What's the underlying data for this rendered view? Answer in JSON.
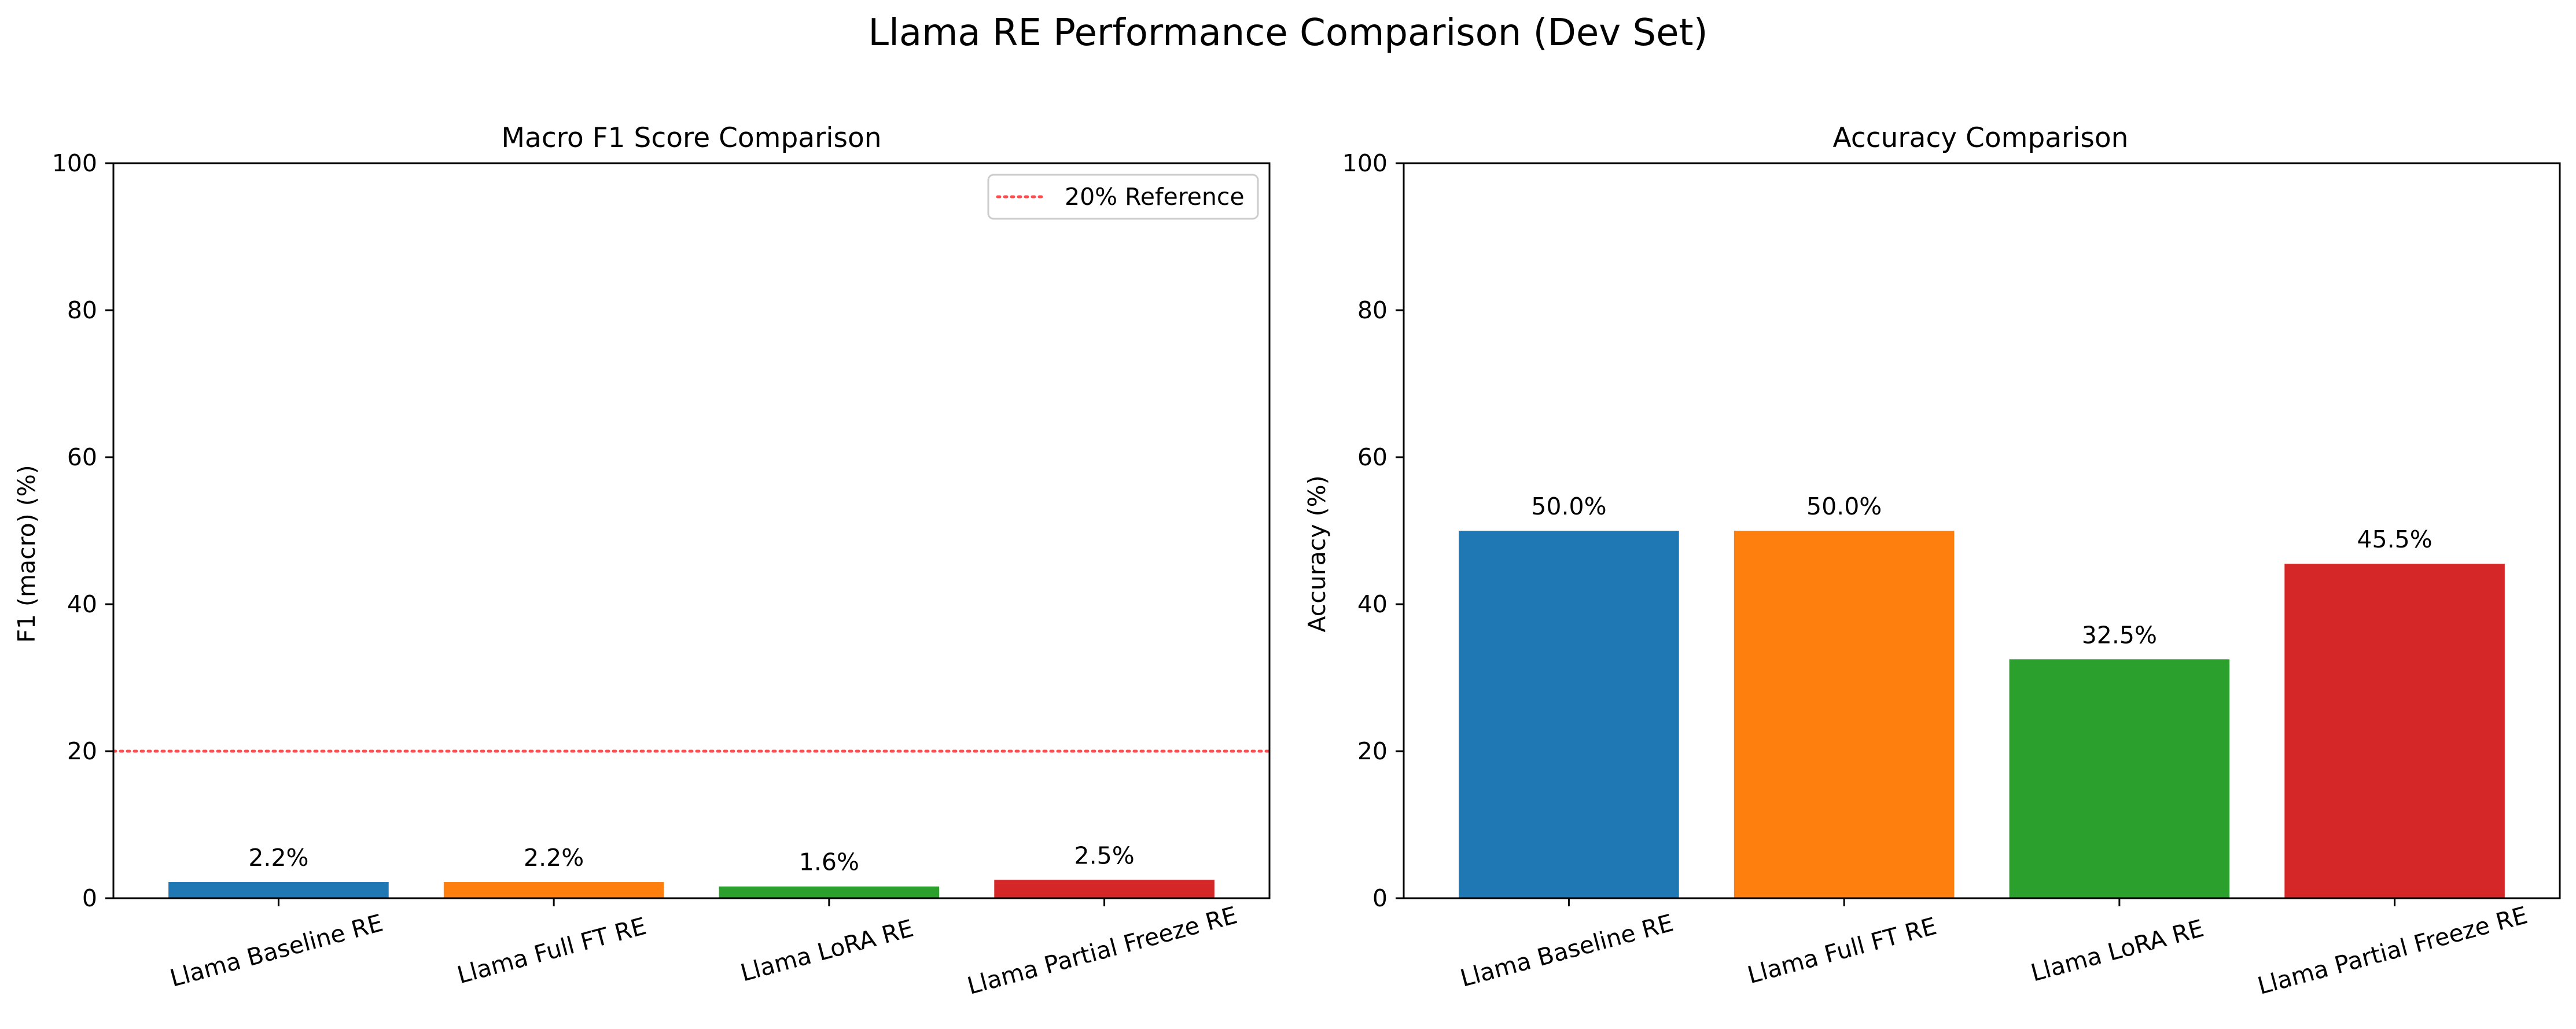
{
  "figure_title": "Llama RE Performance Comparison (Dev Set)",
  "chart_data": [
    {
      "type": "bar",
      "title": "Macro F1 Score Comparison",
      "xlabel": "",
      "ylabel": "F1 (macro) (%)",
      "categories": [
        "Llama Baseline RE",
        "Llama Full FT RE",
        "Llama LoRA RE",
        "Llama Partial Freeze RE"
      ],
      "values": [
        2.2,
        2.2,
        1.6,
        2.5
      ],
      "value_labels": [
        "2.2%",
        "2.2%",
        "1.6%",
        "2.5%"
      ],
      "colors": [
        "#1f77b4",
        "#ff7f0e",
        "#2ca02c",
        "#d62728"
      ],
      "ylim": [
        0,
        100
      ],
      "yticks": [
        0,
        20,
        40,
        60,
        80,
        100
      ],
      "grid": false,
      "reference_line": {
        "value": 20,
        "label": "20% Reference",
        "color": "#ff4d4d",
        "style": "dotted"
      },
      "legend": {
        "position": "upper-right",
        "entries": [
          "20% Reference"
        ]
      }
    },
    {
      "type": "bar",
      "title": "Accuracy Comparison",
      "xlabel": "",
      "ylabel": "Accuracy (%)",
      "categories": [
        "Llama Baseline RE",
        "Llama Full FT RE",
        "Llama LoRA RE",
        "Llama Partial Freeze RE"
      ],
      "values": [
        50.0,
        50.0,
        32.5,
        45.5
      ],
      "value_labels": [
        "50.0%",
        "50.0%",
        "32.5%",
        "45.5%"
      ],
      "colors": [
        "#1f77b4",
        "#ff7f0e",
        "#2ca02c",
        "#d62728"
      ],
      "ylim": [
        0,
        100
      ],
      "yticks": [
        0,
        20,
        40,
        60,
        80,
        100
      ],
      "grid": false
    }
  ]
}
